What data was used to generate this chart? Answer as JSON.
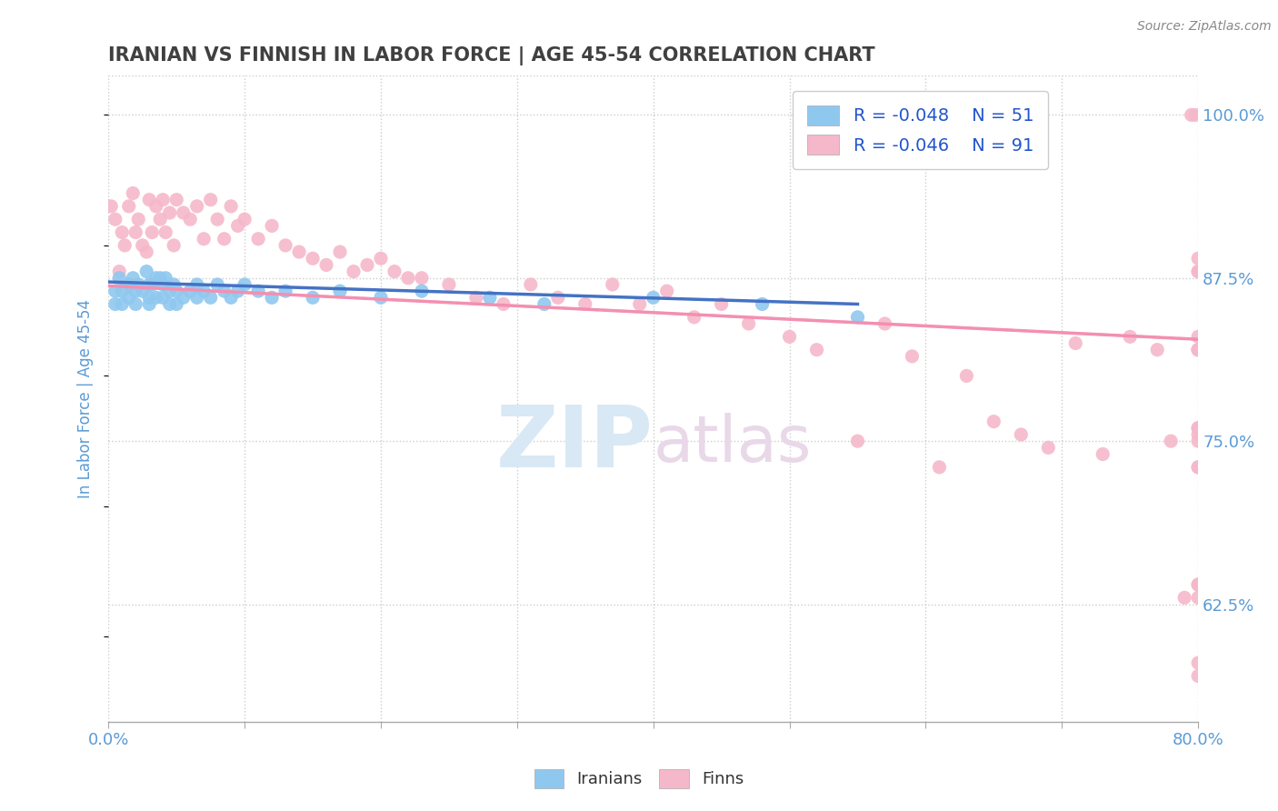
{
  "title": "IRANIAN VS FINNISH IN LABOR FORCE | AGE 45-54 CORRELATION CHART",
  "ylabel": "In Labor Force | Age 45-54",
  "source_text": "Source: ZipAtlas.com",
  "watermark": "ZIPatlas",
  "xlim": [
    0.0,
    0.8
  ],
  "ylim": [
    0.535,
    1.03
  ],
  "xticks": [
    0.0,
    0.1,
    0.2,
    0.3,
    0.4,
    0.5,
    0.6,
    0.7,
    0.8
  ],
  "xticklabels": [
    "0.0%",
    "",
    "",
    "",
    "",
    "",
    "",
    "",
    "80.0%"
  ],
  "yticks": [
    0.625,
    0.75,
    0.875,
    1.0
  ],
  "yticklabels": [
    "62.5%",
    "75.0%",
    "87.5%",
    "100.0%"
  ],
  "legend_iranian": "R = -0.048    N = 51",
  "legend_finnish": "R = -0.046    N = 91",
  "iranian_color": "#8FC8EF",
  "finnish_color": "#F5B8CA",
  "trend_iranian_color": "#4472C4",
  "trend_finnish_color": "#F48FB1",
  "background_color": "#FFFFFF",
  "grid_color": "#CCCCCC",
  "title_color": "#404040",
  "axis_label_color": "#5B9BD5",
  "tick_label_color": "#5B9BD5",
  "iranian_x": [
    0.005,
    0.005,
    0.008,
    0.01,
    0.01,
    0.015,
    0.015,
    0.018,
    0.02,
    0.02,
    0.022,
    0.025,
    0.028,
    0.03,
    0.03,
    0.03,
    0.032,
    0.035,
    0.035,
    0.038,
    0.04,
    0.04,
    0.042,
    0.045,
    0.045,
    0.048,
    0.05,
    0.05,
    0.055,
    0.06,
    0.065,
    0.065,
    0.07,
    0.075,
    0.08,
    0.085,
    0.09,
    0.095,
    0.1,
    0.11,
    0.12,
    0.13,
    0.15,
    0.17,
    0.2,
    0.23,
    0.28,
    0.32,
    0.4,
    0.48,
    0.55
  ],
  "iranian_y": [
    0.865,
    0.855,
    0.875,
    0.865,
    0.855,
    0.87,
    0.86,
    0.875,
    0.865,
    0.855,
    0.87,
    0.865,
    0.88,
    0.87,
    0.86,
    0.855,
    0.87,
    0.875,
    0.86,
    0.875,
    0.87,
    0.86,
    0.875,
    0.865,
    0.855,
    0.87,
    0.865,
    0.855,
    0.86,
    0.865,
    0.87,
    0.86,
    0.865,
    0.86,
    0.87,
    0.865,
    0.86,
    0.865,
    0.87,
    0.865,
    0.86,
    0.865,
    0.86,
    0.865,
    0.86,
    0.865,
    0.86,
    0.855,
    0.86,
    0.855,
    0.845
  ],
  "finnish_x": [
    0.002,
    0.005,
    0.008,
    0.01,
    0.012,
    0.015,
    0.018,
    0.02,
    0.022,
    0.025,
    0.028,
    0.03,
    0.032,
    0.035,
    0.038,
    0.04,
    0.042,
    0.045,
    0.048,
    0.05,
    0.055,
    0.06,
    0.065,
    0.07,
    0.075,
    0.08,
    0.085,
    0.09,
    0.095,
    0.1,
    0.11,
    0.12,
    0.13,
    0.14,
    0.15,
    0.16,
    0.17,
    0.18,
    0.19,
    0.2,
    0.21,
    0.22,
    0.23,
    0.25,
    0.27,
    0.29,
    0.31,
    0.33,
    0.35,
    0.37,
    0.39,
    0.41,
    0.43,
    0.45,
    0.47,
    0.5,
    0.52,
    0.55,
    0.57,
    0.59,
    0.61,
    0.63,
    0.65,
    0.67,
    0.69,
    0.71,
    0.73,
    0.75,
    0.77,
    0.78,
    0.79,
    0.795,
    0.798,
    0.8,
    0.8,
    0.8,
    0.8,
    0.8,
    0.8,
    0.8,
    0.8,
    0.8,
    0.8,
    0.8,
    0.8,
    0.8,
    0.8,
    0.8,
    0.8,
    0.8,
    0.8
  ],
  "finnish_y": [
    0.93,
    0.92,
    0.88,
    0.91,
    0.9,
    0.93,
    0.94,
    0.91,
    0.92,
    0.9,
    0.895,
    0.935,
    0.91,
    0.93,
    0.92,
    0.935,
    0.91,
    0.925,
    0.9,
    0.935,
    0.925,
    0.92,
    0.93,
    0.905,
    0.935,
    0.92,
    0.905,
    0.93,
    0.915,
    0.92,
    0.905,
    0.915,
    0.9,
    0.895,
    0.89,
    0.885,
    0.895,
    0.88,
    0.885,
    0.89,
    0.88,
    0.875,
    0.875,
    0.87,
    0.86,
    0.855,
    0.87,
    0.86,
    0.855,
    0.87,
    0.855,
    0.865,
    0.845,
    0.855,
    0.84,
    0.83,
    0.82,
    0.75,
    0.84,
    0.815,
    0.73,
    0.8,
    0.765,
    0.755,
    0.745,
    0.825,
    0.74,
    0.83,
    0.82,
    0.75,
    0.63,
    1.0,
    1.0,
    0.89,
    0.88,
    0.76,
    0.75,
    0.82,
    0.83,
    0.73,
    0.64,
    0.57,
    0.82,
    0.76,
    0.63,
    0.73,
    0.88,
    0.58,
    0.64,
    0.755,
    0.82
  ],
  "trend_iranian_x0": 0.0,
  "trend_iranian_x1": 0.55,
  "trend_iranian_y0": 0.872,
  "trend_iranian_y1": 0.855,
  "trend_finnish_x0": 0.0,
  "trend_finnish_x1": 0.8,
  "trend_finnish_y0": 0.869,
  "trend_finnish_y1": 0.828
}
